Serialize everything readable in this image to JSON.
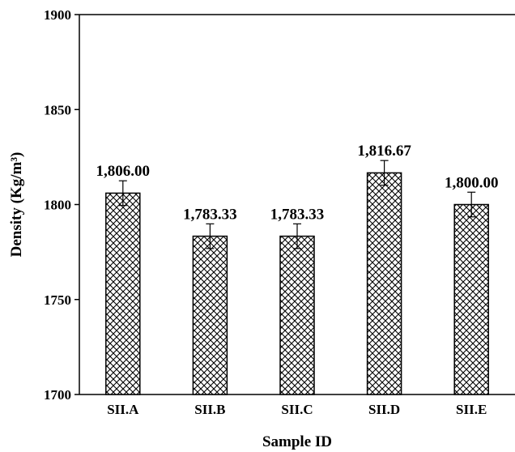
{
  "chart_data": {
    "type": "bar",
    "title": "",
    "xlabel": "Sample ID",
    "ylabel": "Density (Kg/m³)",
    "categories": [
      "SII.A",
      "SII.B",
      "SII.C",
      "SII.D",
      "SII.E"
    ],
    "values": [
      1806.0,
      1783.33,
      1783.33,
      1816.67,
      1800.0
    ],
    "value_labels": [
      "1,806.00",
      "1,783.33",
      "1,783.33",
      "1,816.67",
      "1,800.00"
    ],
    "error": [
      6.5,
      6.5,
      6.5,
      6.5,
      6.5
    ],
    "ylim": [
      1700,
      1900
    ],
    "yticks": [
      1700,
      1750,
      1800,
      1850,
      1900
    ],
    "grid": false,
    "legend": "none",
    "bar_fill": "crosshatch",
    "colors": {
      "bar_stroke": "#000000",
      "axis": "#000000",
      "background": "#ffffff"
    }
  }
}
